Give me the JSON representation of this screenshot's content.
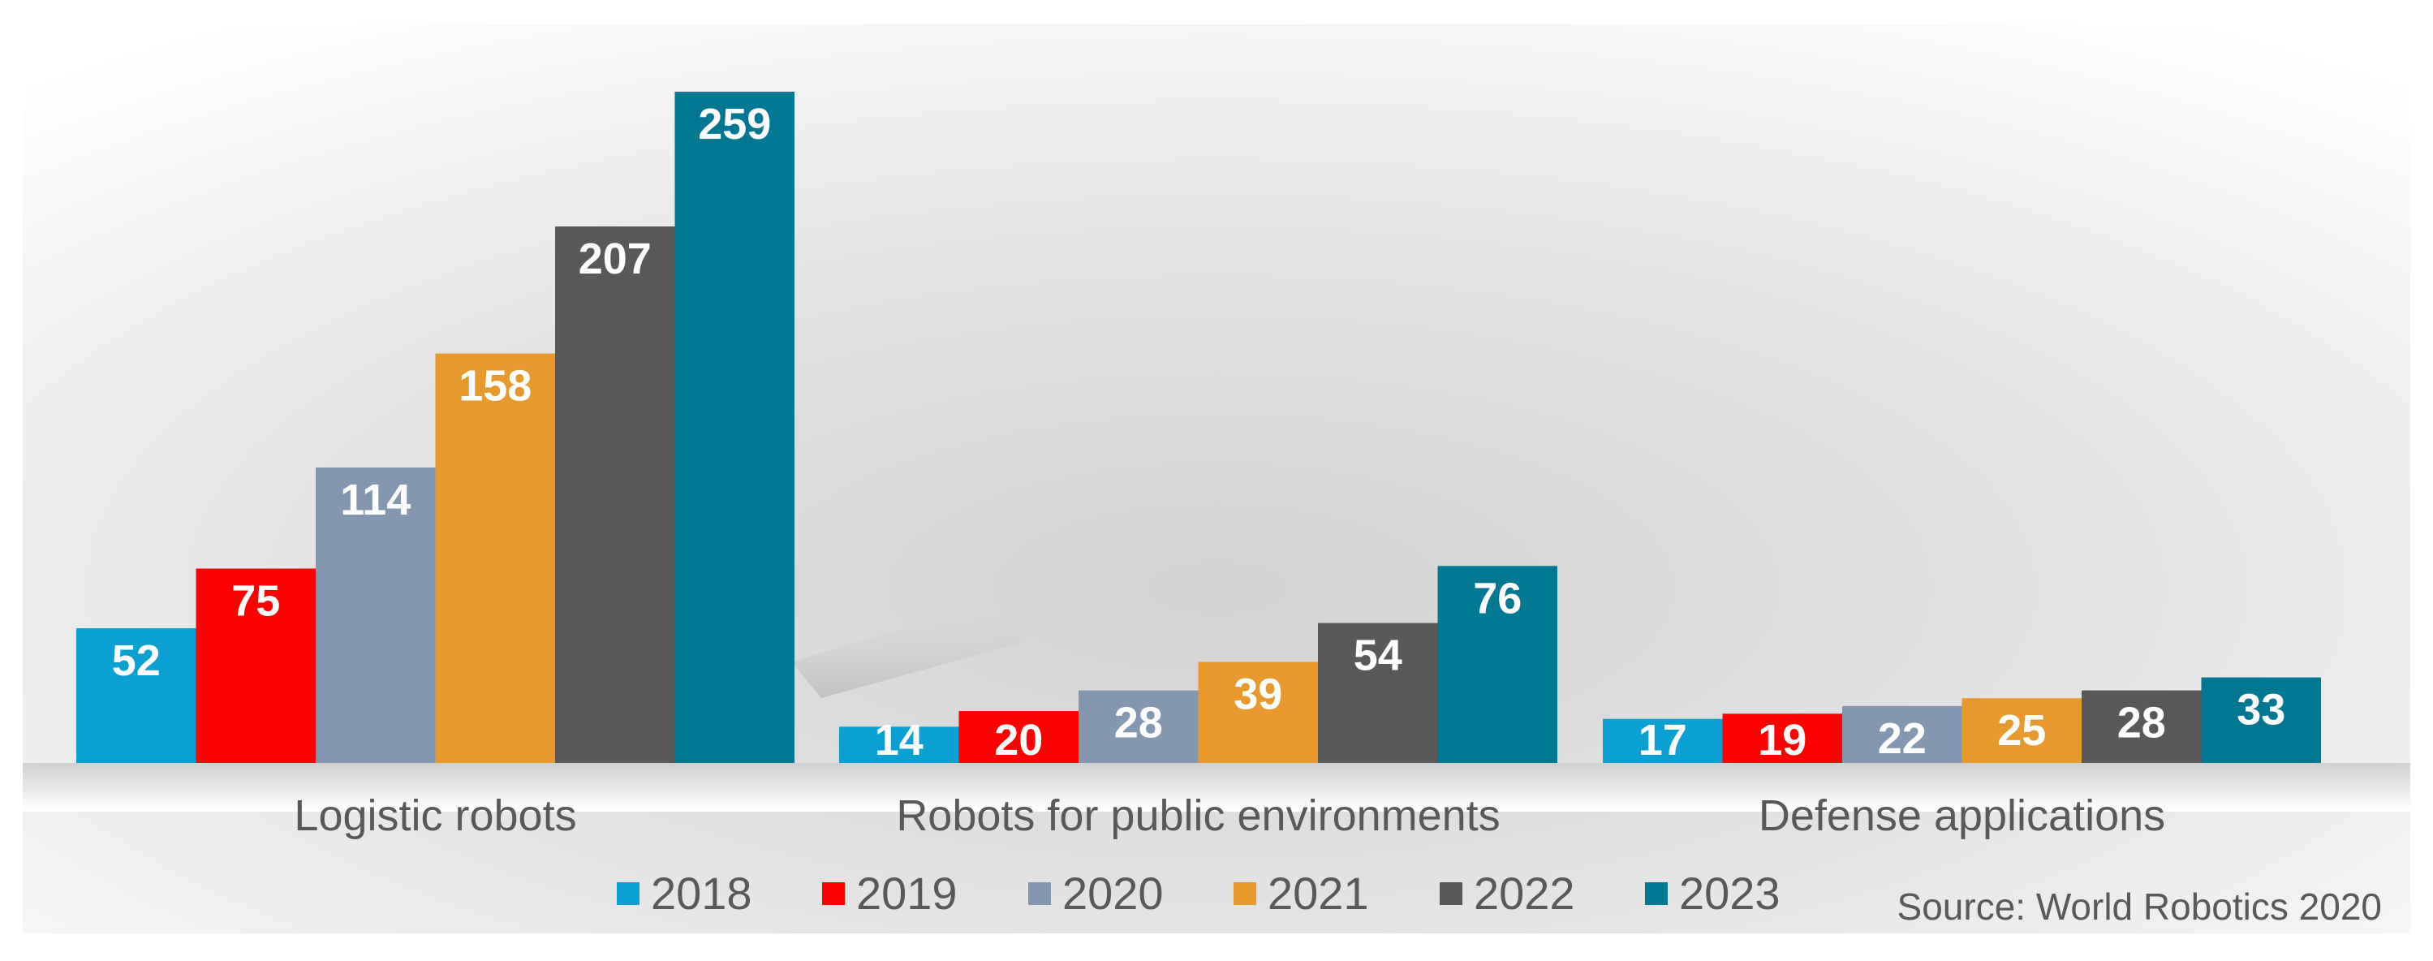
{
  "chart_data": {
    "type": "bar",
    "title": "",
    "xlabel": "",
    "ylabel": "",
    "ylim": [
      0,
      259
    ],
    "grid": false,
    "legend_position": "bottom-center",
    "categories": [
      "Logistic robots",
      "Robots for public environments",
      "Defense applications"
    ],
    "series": [
      {
        "name": "2018",
        "color": "#0AA0D2",
        "values": [
          52,
          14,
          17
        ],
        "labels": [
          "52",
          "14",
          "17"
        ]
      },
      {
        "name": "2019",
        "color": "#FF0000",
        "values": [
          75,
          20,
          19
        ],
        "labels": [
          "75",
          "20",
          "19"
        ]
      },
      {
        "name": "2020",
        "color": "#8497B0",
        "values": [
          114,
          28,
          22
        ],
        "labels": [
          "114",
          "28",
          "22"
        ]
      },
      {
        "name": "2021",
        "color": "#E8992E",
        "values": [
          158,
          39,
          25
        ],
        "labels": [
          "158",
          "39",
          "25"
        ]
      },
      {
        "name": "2022",
        "color": "#595959",
        "values": [
          207,
          54,
          28
        ],
        "labels": [
          "207",
          "54",
          "28"
        ]
      },
      {
        "name": "2023",
        "color": "#007893",
        "values": [
          259,
          76,
          33
        ],
        "labels": [
          "259",
          "76",
          "33"
        ]
      }
    ],
    "source": "Source: World Robotics 2020"
  }
}
